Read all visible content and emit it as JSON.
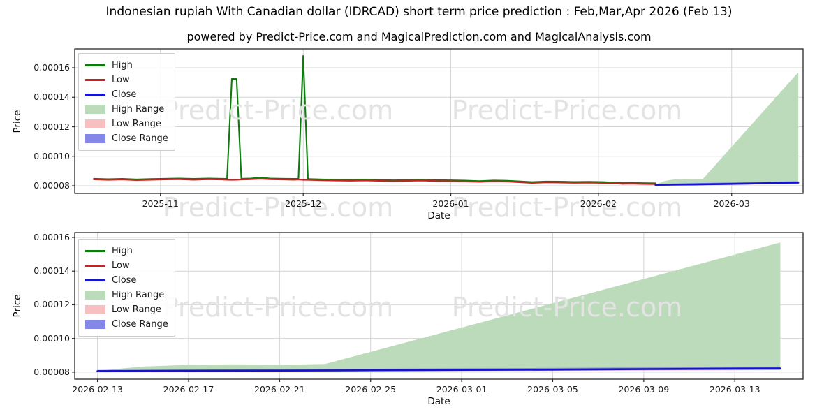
{
  "page": {
    "title": "Indonesian rupiah With Canadian dollar (IDRCAD) short term price prediction : Feb,Mar,Apr 2026 (Feb 13)",
    "subtitle": "powered by Predict-Price.com and MagicalPrediction.com and MagicalAnalysis.com",
    "watermark_text": "Predict-Price.com"
  },
  "colors": {
    "high_line": "#0a7d0a",
    "low_line": "#cc2020",
    "close_line": "#1414cc",
    "high_range_fill": "#bcdbba",
    "low_range_fill": "#f7bfbf",
    "close_range_fill": "#8486e8",
    "grid": "#d4d4d4",
    "spine": "#262626",
    "watermark": "#e3e3e3"
  },
  "chart_data": [
    {
      "type": "line",
      "name": "short-term-history-and-prediction",
      "xlabel": "Date",
      "ylabel": "Price",
      "grid": true,
      "legend_position": "upper-left",
      "x_domain": [
        "2025-10-14",
        "2026-03-16"
      ],
      "y_domain": [
        7.48e-05,
        0.0001728
      ],
      "x_ticks": [
        "2025-11",
        "2025-12",
        "2026-01",
        "2026-02",
        "2026-03"
      ],
      "y_ticks": [
        8e-05,
        0.0001,
        0.00012,
        0.00014,
        0.00016
      ],
      "legend": [
        {
          "label": "High",
          "type": "line",
          "color": "#0a7d0a"
        },
        {
          "label": "Low",
          "type": "line",
          "color": "#cc2020"
        },
        {
          "label": "Close",
          "type": "line",
          "color": "#1414cc"
        },
        {
          "label": "High Range",
          "type": "patch",
          "color": "#bcdbba"
        },
        {
          "label": "Low Range",
          "type": "patch",
          "color": "#f7bfbf"
        },
        {
          "label": "Close Range",
          "type": "patch",
          "color": "#8486e8"
        }
      ],
      "series": [
        {
          "name": "High",
          "color": "#0a7d0a",
          "dates": [
            "2025-10-18",
            "2025-10-21",
            "2025-10-24",
            "2025-10-27",
            "2025-10-30",
            "2025-11-02",
            "2025-11-05",
            "2025-11-08",
            "2025-11-11",
            "2025-11-14",
            "2025-11-15",
            "2025-11-16",
            "2025-11-17",
            "2025-11-18",
            "2025-11-20",
            "2025-11-22",
            "2025-11-24",
            "2025-11-27",
            "2025-11-29",
            "2025-11-30",
            "2025-12-01",
            "2025-12-02",
            "2025-12-05",
            "2025-12-08",
            "2025-12-11",
            "2025-12-14",
            "2025-12-17",
            "2025-12-20",
            "2025-12-23",
            "2025-12-26",
            "2025-12-29",
            "2026-01-01",
            "2026-01-04",
            "2026-01-07",
            "2026-01-10",
            "2026-01-13",
            "2026-01-16",
            "2026-01-18",
            "2026-01-21",
            "2026-01-24",
            "2026-01-27",
            "2026-01-30",
            "2026-02-02",
            "2026-02-04",
            "2026-02-06",
            "2026-02-08",
            "2026-02-10",
            "2026-02-13"
          ],
          "values": [
            8.48e-05,
            8.45e-05,
            8.47e-05,
            8.43e-05,
            8.46e-05,
            8.48e-05,
            8.5e-05,
            8.47e-05,
            8.5e-05,
            8.48e-05,
            8.47e-05,
            0.0001525,
            0.0001525,
            8.48e-05,
            8.5e-05,
            8.56e-05,
            8.5e-05,
            8.48e-05,
            8.47e-05,
            8.48e-05,
            0.000168,
            8.46e-05,
            8.43e-05,
            8.41e-05,
            8.4e-05,
            8.42e-05,
            8.39e-05,
            8.37e-05,
            8.39e-05,
            8.41e-05,
            8.38e-05,
            8.37e-05,
            8.35e-05,
            8.32e-05,
            8.36e-05,
            8.34e-05,
            8.29e-05,
            8.25e-05,
            8.29e-05,
            8.28e-05,
            8.26e-05,
            8.27e-05,
            8.25e-05,
            8.22e-05,
            8.19e-05,
            8.2e-05,
            8.18e-05,
            8.17e-05
          ]
        },
        {
          "name": "Low",
          "color": "#cc2020",
          "dates": [
            "2025-10-18",
            "2025-10-21",
            "2025-10-24",
            "2025-10-27",
            "2025-10-30",
            "2025-11-02",
            "2025-11-05",
            "2025-11-08",
            "2025-11-11",
            "2025-11-14",
            "2025-11-15",
            "2025-11-16",
            "2025-11-17",
            "2025-11-18",
            "2025-11-20",
            "2025-11-22",
            "2025-11-24",
            "2025-11-27",
            "2025-11-29",
            "2025-11-30",
            "2025-12-01",
            "2025-12-02",
            "2025-12-05",
            "2025-12-08",
            "2025-12-11",
            "2025-12-14",
            "2025-12-17",
            "2025-12-20",
            "2025-12-23",
            "2025-12-26",
            "2025-12-29",
            "2026-01-01",
            "2026-01-04",
            "2026-01-07",
            "2026-01-10",
            "2026-01-13",
            "2026-01-16",
            "2026-01-18",
            "2026-01-21",
            "2026-01-24",
            "2026-01-27",
            "2026-01-30",
            "2026-02-02",
            "2026-02-04",
            "2026-02-06",
            "2026-02-08",
            "2026-02-10",
            "2026-02-13"
          ],
          "values": [
            8.43e-05,
            8.4e-05,
            8.42e-05,
            8.38e-05,
            8.41e-05,
            8.43e-05,
            8.44e-05,
            8.41e-05,
            8.44e-05,
            8.42e-05,
            8.41e-05,
            8.4e-05,
            8.41e-05,
            8.42e-05,
            8.44e-05,
            8.48e-05,
            8.44e-05,
            8.42e-05,
            8.41e-05,
            8.42e-05,
            8.4e-05,
            8.4e-05,
            8.37e-05,
            8.35e-05,
            8.34e-05,
            8.36e-05,
            8.33e-05,
            8.31e-05,
            8.33e-05,
            8.35e-05,
            8.32e-05,
            8.31e-05,
            8.29e-05,
            8.26e-05,
            8.3e-05,
            8.28e-05,
            8.23e-05,
            8.19e-05,
            8.23e-05,
            8.22e-05,
            8.2e-05,
            8.21e-05,
            8.19e-05,
            8.16e-05,
            8.13e-05,
            8.14e-05,
            8.12e-05,
            8.11e-05
          ]
        },
        {
          "name": "Close",
          "color": "#1414cc",
          "dates": [
            "2026-02-13",
            "2026-02-17",
            "2026-02-21",
            "2026-02-25",
            "2026-03-01",
            "2026-03-05",
            "2026-03-09",
            "2026-03-13",
            "2026-03-15"
          ],
          "values": [
            8.06e-05,
            8.08e-05,
            8.09e-05,
            8.11e-05,
            8.13e-05,
            8.15e-05,
            8.18e-05,
            8.21e-05,
            8.22e-05
          ]
        }
      ],
      "bands": [
        {
          "name": "High Range",
          "color": "#bcdbba",
          "dates": [
            "2026-02-13",
            "2026-02-15",
            "2026-02-17",
            "2026-02-19",
            "2026-02-21",
            "2026-02-23",
            "2026-03-15"
          ],
          "upper": [
            8.08e-05,
            8.33e-05,
            8.43e-05,
            8.46e-05,
            8.43e-05,
            8.48e-05,
            0.000157
          ],
          "lower": [
            8.06e-05,
            8.07e-05,
            8.08e-05,
            8.09e-05,
            8.09e-05,
            8.1e-05,
            8.22e-05
          ]
        },
        {
          "name": "Low Range",
          "color": "#f7bfbf",
          "dates": [
            "2026-02-13",
            "2026-03-15"
          ],
          "upper": [
            8.06e-05,
            8.22e-05
          ],
          "lower": [
            7.99e-05,
            8.12e-05
          ]
        },
        {
          "name": "Close Range",
          "color": "#8486e8",
          "dates": [
            "2026-02-13",
            "2026-03-15"
          ],
          "upper": [
            8.13e-05,
            8.31e-05
          ],
          "lower": [
            8e-05,
            8.14e-05
          ]
        }
      ]
    },
    {
      "type": "line",
      "name": "prediction-detail",
      "xlabel": "Date",
      "ylabel": "Price",
      "grid": true,
      "legend_position": "upper-left",
      "x_domain": [
        "2026-02-12",
        "2026-03-16"
      ],
      "y_domain": [
        7.58e-05,
        0.0001629
      ],
      "x_ticks": [
        "2026-02-13",
        "2026-02-17",
        "2026-02-21",
        "2026-02-25",
        "2026-03-01",
        "2026-03-05",
        "2026-03-09",
        "2026-03-13"
      ],
      "y_ticks": [
        8e-05,
        0.0001,
        0.00012,
        0.00014,
        0.00016
      ],
      "legend": [
        {
          "label": "High",
          "type": "line",
          "color": "#0a7d0a"
        },
        {
          "label": "Low",
          "type": "line",
          "color": "#cc2020"
        },
        {
          "label": "Close",
          "type": "line",
          "color": "#1414cc"
        },
        {
          "label": "High Range",
          "type": "patch",
          "color": "#bcdbba"
        },
        {
          "label": "Low Range",
          "type": "patch",
          "color": "#f7bfbf"
        },
        {
          "label": "Close Range",
          "type": "patch",
          "color": "#8486e8"
        }
      ],
      "series": [
        {
          "name": "Close",
          "color": "#1414cc",
          "dates": [
            "2026-02-13",
            "2026-02-17",
            "2026-02-21",
            "2026-02-25",
            "2026-03-01",
            "2026-03-05",
            "2026-03-09",
            "2026-03-13",
            "2026-03-15"
          ],
          "values": [
            8.06e-05,
            8.08e-05,
            8.09e-05,
            8.11e-05,
            8.13e-05,
            8.15e-05,
            8.18e-05,
            8.21e-05,
            8.22e-05
          ]
        }
      ],
      "bands": [
        {
          "name": "High Range",
          "color": "#bcdbba",
          "dates": [
            "2026-02-13",
            "2026-02-15",
            "2026-02-17",
            "2026-02-19",
            "2026-02-21",
            "2026-02-23",
            "2026-03-15"
          ],
          "upper": [
            8.08e-05,
            8.33e-05,
            8.43e-05,
            8.46e-05,
            8.43e-05,
            8.48e-05,
            0.000157
          ],
          "lower": [
            8.06e-05,
            8.07e-05,
            8.08e-05,
            8.09e-05,
            8.09e-05,
            8.1e-05,
            8.22e-05
          ]
        },
        {
          "name": "Low Range",
          "color": "#f7bfbf",
          "dates": [
            "2026-02-13",
            "2026-03-15"
          ],
          "upper": [
            8.06e-05,
            8.22e-05
          ],
          "lower": [
            7.99e-05,
            8.12e-05
          ]
        },
        {
          "name": "Close Range",
          "color": "#8486e8",
          "dates": [
            "2026-02-13",
            "2026-03-15"
          ],
          "upper": [
            8.13e-05,
            8.31e-05
          ],
          "lower": [
            8e-05,
            8.14e-05
          ]
        }
      ]
    }
  ]
}
